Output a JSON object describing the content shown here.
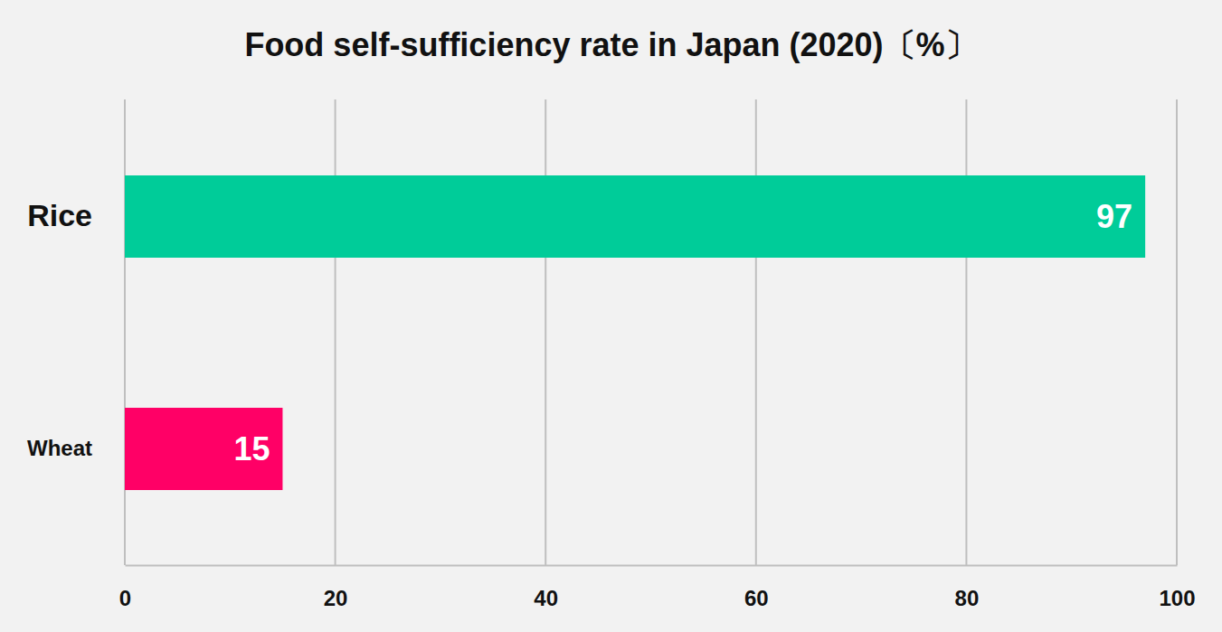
{
  "chart_data": {
    "type": "bar",
    "title": "Food self-sufficiency rate in Japan (2020)〔%〕",
    "orientation": "horizontal",
    "categories": [
      "Rice",
      "Wheat"
    ],
    "values": [
      97,
      15
    ],
    "colors": [
      "#00cc99",
      "#ff0066"
    ],
    "xlim": [
      0,
      100
    ],
    "xticks": [
      0,
      20,
      40,
      60,
      80,
      100
    ],
    "grid": true,
    "data_labels": true
  }
}
